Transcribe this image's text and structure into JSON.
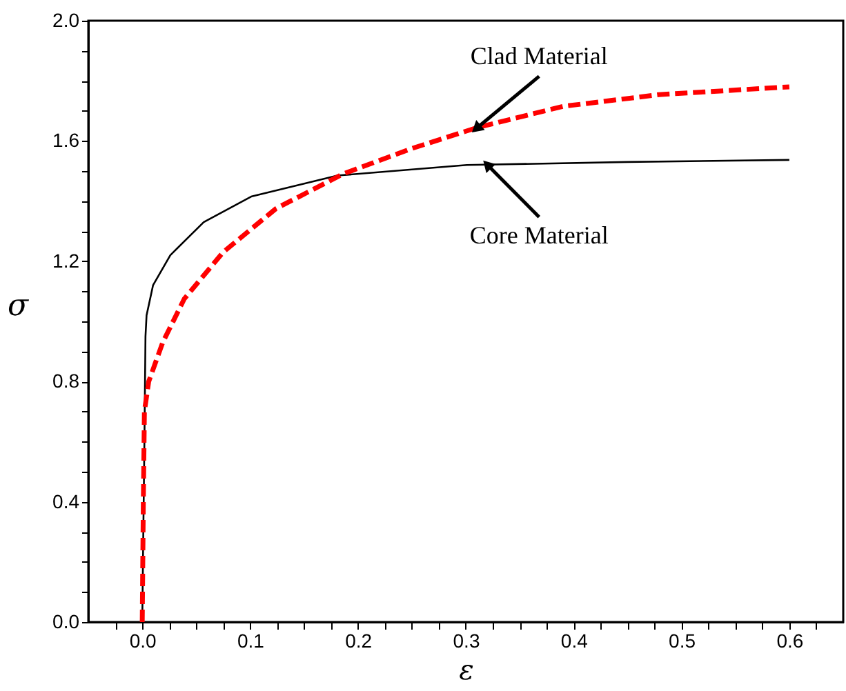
{
  "chart_data": {
    "type": "line",
    "xlabel": "ε",
    "ylabel": "σ",
    "xlim": [
      -0.05,
      0.65
    ],
    "ylim": [
      0,
      2.0
    ],
    "xticks": [
      {
        "value": -0.025,
        "label": null
      },
      {
        "value": 0,
        "label": "0.0"
      },
      {
        "value": 0.025,
        "label": null
      },
      {
        "value": 0.05,
        "label": null
      },
      {
        "value": 0.075,
        "label": null
      },
      0.1,
      {
        "value": 0.125,
        "label": null
      },
      {
        "value": 0.15,
        "label": null
      },
      {
        "value": 0.175,
        "label": null
      },
      0.2,
      {
        "value": 0.225,
        "label": null
      },
      {
        "value": 0.25,
        "label": null
      },
      {
        "value": 0.275,
        "label": null
      },
      0.3,
      {
        "value": 0.325,
        "label": null
      },
      {
        "value": 0.35,
        "label": null
      },
      {
        "value": 0.375,
        "label": null
      },
      0.4,
      {
        "value": 0.425,
        "label": null
      },
      {
        "value": 0.45,
        "label": null
      },
      {
        "value": 0.475,
        "label": null
      },
      0.5,
      {
        "value": 0.525,
        "label": null
      },
      {
        "value": 0.55,
        "label": null
      },
      {
        "value": 0.575,
        "label": null
      },
      0.6,
      {
        "value": 0.625,
        "label": null
      }
    ],
    "yticks": [
      {
        "value": 0,
        "label": "0.0"
      },
      {
        "value": 0.1,
        "label": null
      },
      {
        "value": 0.2,
        "label": null
      },
      {
        "value": 0.3,
        "label": null
      },
      0.4,
      {
        "value": 0.5,
        "label": null
      },
      {
        "value": 0.6,
        "label": null
      },
      {
        "value": 0.7,
        "label": null
      },
      0.8,
      {
        "value": 0.9,
        "label": null
      },
      {
        "value": 1.0,
        "label": null
      },
      {
        "value": 1.1,
        "label": null
      },
      1.2,
      {
        "value": 1.3,
        "label": null
      },
      {
        "value": 1.4,
        "label": null
      },
      {
        "value": 1.5,
        "label": null
      },
      1.6,
      {
        "value": 1.7,
        "label": null
      },
      {
        "value": 1.8,
        "label": null
      },
      {
        "value": 1.9,
        "label": null
      },
      {
        "value": 2.0,
        "label": "2.0"
      }
    ],
    "grid": false,
    "series": [
      {
        "color": "#000000",
        "line_style": "solid",
        "x": [
          0,
          0.002,
          0.003,
          0.004,
          0.01,
          0.026,
          0.057,
          0.101,
          0.181,
          0.301,
          0.45,
          0.6
        ],
        "values": [
          0,
          0.6,
          0.95,
          1.02,
          1.12,
          1.22,
          1.33,
          1.415,
          1.485,
          1.52,
          1.53,
          1.537
        ]
      },
      {
        "color": "#ff0000",
        "line_style": "dashed",
        "x": [
          0,
          0.001,
          0.002,
          0.006,
          0.012,
          0.019,
          0.039,
          0.075,
          0.124,
          0.186,
          0.25,
          0.311,
          0.39,
          0.479,
          0.6
        ],
        "values": [
          0,
          0.4,
          0.7,
          0.8,
          0.86,
          0.93,
          1.075,
          1.23,
          1.375,
          1.49,
          1.575,
          1.645,
          1.715,
          1.754,
          1.78
        ]
      }
    ],
    "annotations": [
      {
        "text": "Clad Material",
        "x": 0.311,
        "y": 1.645
      },
      {
        "text": "Core Material",
        "x": 0.321,
        "y": 1.517
      }
    ]
  }
}
